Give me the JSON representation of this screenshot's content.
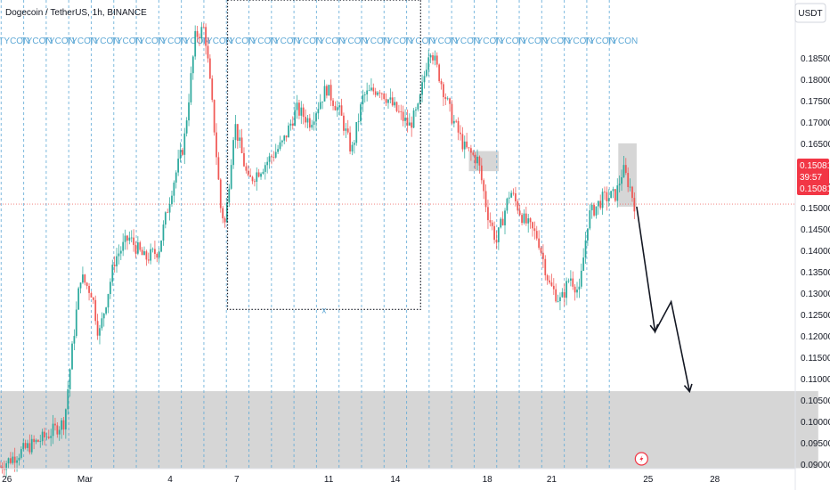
{
  "header": {
    "title": "Dogecoin / TetherUS, 1h, BINANCE"
  },
  "currency_button": {
    "label": "USDT"
  },
  "price_badge": {
    "price": "0.15081",
    "countdown": "39:57",
    "price2": "0.15081"
  },
  "cycle_label": "TYCON",
  "colors": {
    "up": "#26a69a",
    "down": "#ef5350",
    "vline": "#5fa9d6",
    "zone": "#c8c8c8",
    "badge": "#f23645"
  },
  "chart_data": {
    "type": "candlestick",
    "title": "Dogecoin / TetherUS, 1h, BINANCE",
    "ylim": [
      0.089,
      0.1985
    ],
    "y_ticks": [
      "0.18500",
      "0.18000",
      "0.17500",
      "0.17000",
      "0.16500",
      "0.16000",
      "0.15500",
      "0.15000",
      "0.14500",
      "0.14000",
      "0.13500",
      "0.13000",
      "0.12500",
      "0.12000",
      "0.11500",
      "0.11000",
      "0.10500",
      "0.10000",
      "0.09500",
      "0.09000"
    ],
    "x_ticks": [
      "26",
      "Mar",
      "4",
      "7",
      "11",
      "14",
      "18",
      "21",
      "25",
      "28"
    ],
    "price_path": [
      {
        "x": 0.0,
        "y": 0.0895
      },
      {
        "x": 1.2,
        "y": 0.094
      },
      {
        "x": 2.0,
        "y": 0.0965
      },
      {
        "x": 2.8,
        "y": 0.1
      },
      {
        "x": 3.1,
        "y": 0.115
      },
      {
        "x": 3.5,
        "y": 0.134
      },
      {
        "x": 4.0,
        "y": 0.13
      },
      {
        "x": 4.3,
        "y": 0.12
      },
      {
        "x": 5.0,
        "y": 0.138
      },
      {
        "x": 5.6,
        "y": 0.143
      },
      {
        "x": 6.3,
        "y": 0.138
      },
      {
        "x": 6.9,
        "y": 0.14
      },
      {
        "x": 7.5,
        "y": 0.155
      },
      {
        "x": 8.0,
        "y": 0.165
      },
      {
        "x": 8.5,
        "y": 0.19
      },
      {
        "x": 8.9,
        "y": 0.192
      },
      {
        "x": 9.3,
        "y": 0.17
      },
      {
        "x": 9.6,
        "y": 0.15
      },
      {
        "x": 9.8,
        "y": 0.146
      },
      {
        "x": 10.2,
        "y": 0.17
      },
      {
        "x": 10.8,
        "y": 0.156
      },
      {
        "x": 11.5,
        "y": 0.16
      },
      {
        "x": 12.3,
        "y": 0.165
      },
      {
        "x": 12.9,
        "y": 0.173
      },
      {
        "x": 13.5,
        "y": 0.17
      },
      {
        "x": 14.2,
        "y": 0.178
      },
      {
        "x": 14.8,
        "y": 0.172
      },
      {
        "x": 15.3,
        "y": 0.163
      },
      {
        "x": 15.8,
        "y": 0.176
      },
      {
        "x": 16.5,
        "y": 0.178
      },
      {
        "x": 17.2,
        "y": 0.173
      },
      {
        "x": 17.8,
        "y": 0.169
      },
      {
        "x": 18.2,
        "y": 0.173
      },
      {
        "x": 18.7,
        "y": 0.188
      },
      {
        "x": 19.1,
        "y": 0.181
      },
      {
        "x": 19.6,
        "y": 0.172
      },
      {
        "x": 20.2,
        "y": 0.164
      },
      {
        "x": 20.8,
        "y": 0.161
      },
      {
        "x": 21.2,
        "y": 0.149
      },
      {
        "x": 21.6,
        "y": 0.142
      },
      {
        "x": 22.2,
        "y": 0.154
      },
      {
        "x": 22.8,
        "y": 0.147
      },
      {
        "x": 23.4,
        "y": 0.143
      },
      {
        "x": 23.9,
        "y": 0.132
      },
      {
        "x": 24.4,
        "y": 0.128
      },
      {
        "x": 24.8,
        "y": 0.134
      },
      {
        "x": 25.2,
        "y": 0.13
      },
      {
        "x": 25.6,
        "y": 0.148
      },
      {
        "x": 26.2,
        "y": 0.152
      },
      {
        "x": 26.8,
        "y": 0.153
      },
      {
        "x": 27.1,
        "y": 0.159
      },
      {
        "x": 27.4,
        "y": 0.155
      },
      {
        "x": 27.6,
        "y": 0.1508
      }
    ],
    "candle_count": 300,
    "x_range": [
      0,
      34.6
    ],
    "current_price": 0.15081,
    "annotations": [
      {
        "type": "dotted-box",
        "x0": 9.9,
        "x1": 18.3,
        "y0": 0.1262,
        "y1": 0.1985,
        "label": "x"
      },
      {
        "type": "zone",
        "x0": 20.4,
        "x1": 21.7,
        "y0": 0.1585,
        "y1": 0.1632
      },
      {
        "type": "zone",
        "x0": 26.9,
        "x1": 27.7,
        "y0": 0.1502,
        "y1": 0.165
      },
      {
        "type": "zone",
        "x0": 0.0,
        "x1": 35.6,
        "y0": 0.0891,
        "y1": 0.1071
      },
      {
        "type": "arrow-path",
        "points": [
          [
            27.7,
            0.1502
          ],
          [
            28.5,
            0.121
          ],
          [
            29.2,
            0.128
          ],
          [
            30.0,
            0.107
          ]
        ]
      },
      {
        "type": "vertical-cycle-lines",
        "x_start": 0.05,
        "x_step": 0.98,
        "count": 28
      },
      {
        "type": "reversal-marker",
        "x": 27.6,
        "y": 0.091
      }
    ]
  }
}
